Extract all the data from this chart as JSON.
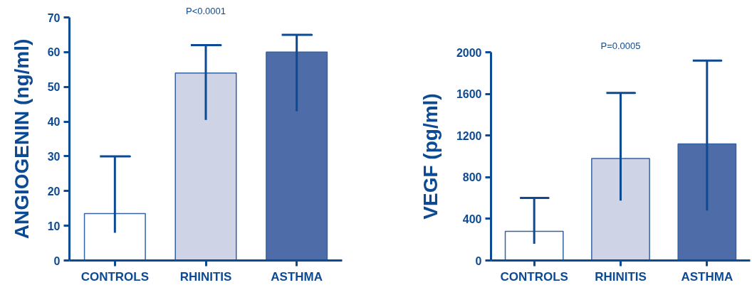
{
  "chart_data": [
    {
      "type": "bar",
      "ylabel": "ANGIOGENIN (ng/ml)",
      "annotations": [
        "P<0.0001"
      ],
      "categories": [
        "CONTROLS",
        "RHINITIS",
        "ASTHMA"
      ],
      "values": [
        13.5,
        54,
        60
      ],
      "colors": [
        "#ffffff",
        "#ced3e6",
        "#4e6ca8"
      ],
      "errors": [
        [
          8,
          30
        ],
        [
          40.5,
          62
        ],
        [
          43,
          65
        ]
      ],
      "ylim": [
        0,
        70
      ],
      "yticks": [
        0,
        10,
        20,
        30,
        40,
        50,
        60,
        70
      ]
    },
    {
      "type": "bar",
      "ylabel": "VEGF (pg/ml)",
      "annotations": [
        "P=0.0005"
      ],
      "categories": [
        "CONTROLS",
        "RHINITIS",
        "ASTHMA"
      ],
      "values": [
        280,
        980,
        1120
      ],
      "colors": [
        "#ffffff",
        "#ced3e6",
        "#4e6ca8"
      ],
      "errors": [
        [
          160,
          600
        ],
        [
          575,
          1610
        ],
        [
          480,
          1920
        ]
      ],
      "ylim": [
        0,
        2000
      ],
      "yticks": [
        0,
        400,
        800,
        1200,
        1600,
        2000
      ]
    }
  ]
}
